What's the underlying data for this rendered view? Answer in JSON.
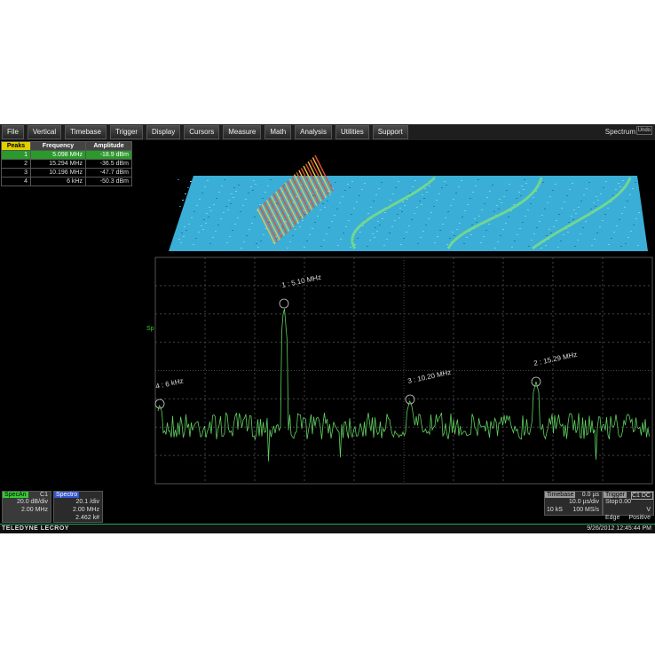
{
  "menu": {
    "items": [
      "File",
      "Vertical",
      "Timebase",
      "Trigger",
      "Display",
      "Cursors",
      "Measure",
      "Math",
      "Analysis",
      "Utilities",
      "Support"
    ],
    "mode": "Spectrum",
    "undo": "Undo"
  },
  "peaks_table": {
    "headers": [
      "Peaks",
      "Frequency",
      "Amplitude"
    ],
    "rows": [
      [
        "1",
        "5.098 MHz",
        "-18.9 dBm"
      ],
      [
        "2",
        "15.294 MHz",
        "-36.5 dBm"
      ],
      [
        "3",
        "10.196 MHz",
        "-47.7 dBm"
      ],
      [
        "4",
        "6 kHz",
        "-50.3 dBm"
      ]
    ]
  },
  "trace_label": "Sp",
  "markers": [
    "1 : 5.10 MHz",
    "2 : 15.29 MHz",
    "3 : 10.20 MHz",
    "4 : 6 kHz"
  ],
  "specan": {
    "label": "SpecAn",
    "channel": "C1",
    "lines": [
      "20.0 dB/div",
      "2.00 MHz"
    ]
  },
  "spectro": {
    "label": "Spectro",
    "lines": [
      "20.1 /div",
      "2.00 MHz",
      "2.462 k#"
    ]
  },
  "timebase": {
    "label": "Timebase",
    "delay": "0.0 µs",
    "per_div": "10.0 µs/div",
    "samples": "10 kS",
    "rate": "100 MS/s"
  },
  "trigger": {
    "label": "Trigger",
    "channel": "C1 DC",
    "mode": "Stop",
    "level": "0.00 V",
    "type": "Edge",
    "slope": "Positive"
  },
  "footer": {
    "brand": "TELEDYNE LECROY",
    "datetime": "9/26/2012 12:45:44 PM"
  }
}
